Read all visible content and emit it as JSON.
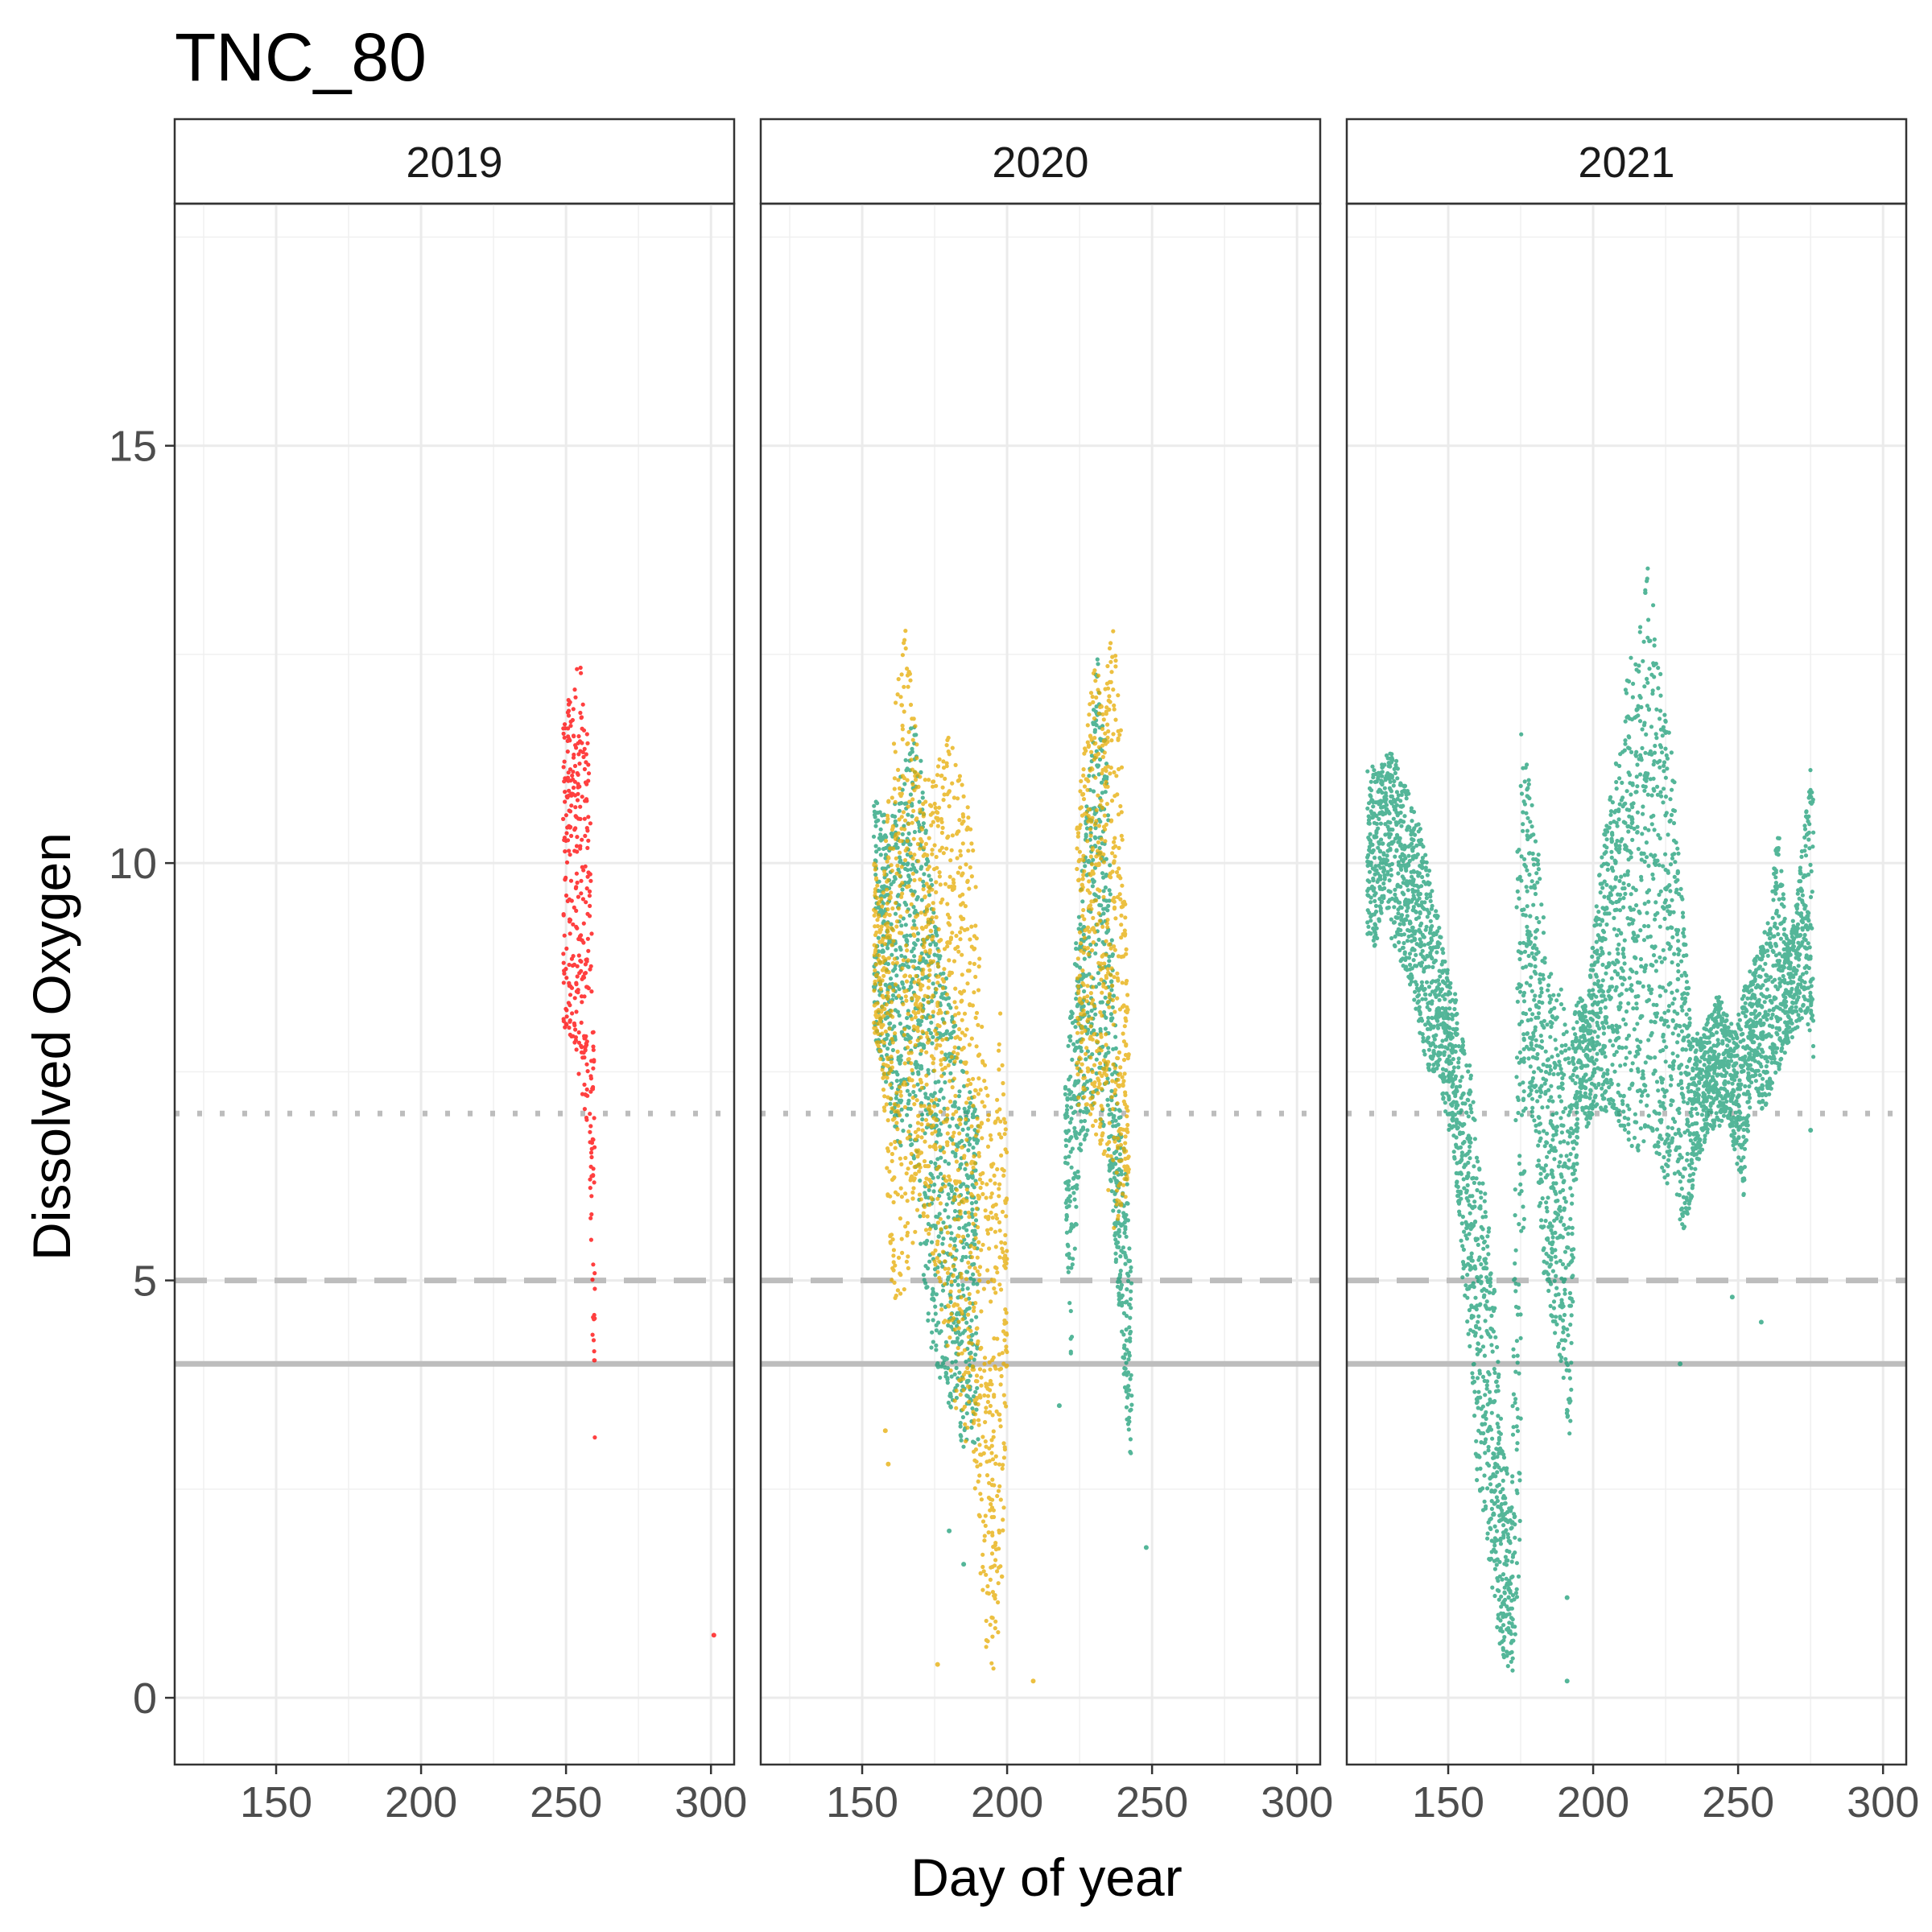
{
  "chart_data": {
    "type": "scatter",
    "title": "TNC_80",
    "xlabel": "Day of year",
    "ylabel": "Dissolved Oxygen",
    "xlim": [
      115,
      308
    ],
    "ylim": [
      -0.8,
      17.9
    ],
    "x_ticks": [
      150,
      200,
      250,
      300
    ],
    "y_ticks": [
      0,
      5,
      10,
      15
    ],
    "grid": true,
    "legend": "none",
    "colors": {
      "red": "#ff0000",
      "gold": "#e6ab02",
      "teal": "#1b9e77",
      "reference": "#bdbdbd"
    },
    "reference_lines": [
      {
        "y": 7,
        "style": "dotted"
      },
      {
        "y": 5,
        "style": "dashed"
      },
      {
        "y": 4,
        "style": "solid"
      }
    ],
    "facets": [
      {
        "label": "2019",
        "series": [
          {
            "color": "#ff0000",
            "bands": [
              [
                249,
                7.8,
                11.6
              ],
              [
                251,
                8.0,
                12.0
              ],
              [
                253,
                7.6,
                12.3
              ],
              [
                255,
                7.3,
                12.4
              ],
              [
                257,
                6.8,
                11.7
              ],
              [
                258,
                6.6,
                11.5
              ],
              [
                259,
                4.5,
                9.0
              ],
              [
                260,
                3.0,
                7.0
              ]
            ],
            "points": [
              [
                301,
                0.75
              ]
            ]
          }
        ]
      },
      {
        "label": "2020",
        "series": [
          {
            "color": "#1b9e77",
            "bands": [
              [
                154,
                8.0,
                10.8
              ],
              [
                157,
                7.5,
                10.6
              ],
              [
                160,
                7.0,
                10.5
              ],
              [
                163,
                6.5,
                11.0
              ],
              [
                166,
                6.8,
                11.5
              ],
              [
                169,
                6.0,
                12.0
              ],
              [
                172,
                4.5,
                10.5
              ],
              [
                175,
                4.0,
                9.5
              ],
              [
                180,
                3.5,
                8.5
              ],
              [
                185,
                3.0,
                7.5
              ],
              [
                190,
                3.0,
                7.0
              ],
              [
                220,
                6.0,
                7.5
              ],
              [
                222,
                4.0,
                8.5
              ],
              [
                225,
                6.5,
                9.5
              ],
              [
                228,
                6.8,
                11.0
              ],
              [
                231,
                7.0,
                12.5
              ],
              [
                234,
                6.8,
                11.5
              ],
              [
                238,
                5.0,
                7.5
              ],
              [
                241,
                3.5,
                6.5
              ],
              [
                243,
                2.2,
                5.0
              ]
            ],
            "points": [
              [
                180,
                2.0
              ],
              [
                185,
                1.6
              ],
              [
                218,
                3.5
              ],
              [
                248,
                1.8
              ]
            ]
          },
          {
            "color": "#e6ab02",
            "bands": [
              [
                154,
                8.0,
                10.2
              ],
              [
                157,
                7.5,
                9.5
              ],
              [
                160,
                5.0,
                11.5
              ],
              [
                163,
                4.5,
                12.5
              ],
              [
                166,
                5.0,
                13.0
              ],
              [
                170,
                6.0,
                11.0
              ],
              [
                175,
                5.0,
                11.0
              ],
              [
                180,
                4.0,
                11.8
              ],
              [
                184,
                3.0,
                11.0
              ],
              [
                188,
                3.0,
                10.5
              ],
              [
                192,
                0.5,
                8.0
              ],
              [
                195,
                0.3,
                6.5
              ],
              [
                198,
                0.8,
                8.5
              ],
              [
                200,
                4.0,
                6.5
              ],
              [
                224,
                7.0,
                10.5
              ],
              [
                227,
                7.0,
                11.5
              ],
              [
                230,
                6.8,
                12.5
              ],
              [
                233,
                6.5,
                12.0
              ],
              [
                236,
                5.5,
                13.0
              ],
              [
                239,
                5.8,
                12.0
              ],
              [
                242,
                6.0,
                8.0
              ]
            ],
            "points": [
              [
                158,
                3.2
              ],
              [
                159,
                2.8
              ],
              [
                176,
                0.4
              ],
              [
                209,
                0.2
              ]
            ]
          }
        ]
      },
      {
        "label": "2021",
        "series": [
          {
            "color": "#1b9e77",
            "bands": [
              [
                122,
                9.0,
                11.1
              ],
              [
                125,
                9.0,
                11.2
              ],
              [
                128,
                9.5,
                11.3
              ],
              [
                131,
                9.0,
                11.4
              ],
              [
                134,
                8.8,
                11.0
              ],
              [
                137,
                8.5,
                10.8
              ],
              [
                140,
                8.0,
                10.5
              ],
              [
                143,
                7.5,
                10.0
              ],
              [
                146,
                7.5,
                9.5
              ],
              [
                149,
                7.0,
                8.8
              ],
              [
                152,
                6.5,
                8.5
              ],
              [
                155,
                5.0,
                8.0
              ],
              [
                158,
                4.0,
                7.5
              ],
              [
                160,
                2.5,
                6.5
              ],
              [
                163,
                2.0,
                6.0
              ],
              [
                166,
                1.0,
                5.0
              ],
              [
                169,
                0.4,
                3.0
              ],
              [
                172,
                0.2,
                2.5
              ],
              [
                174,
                0.3,
                11.8
              ],
              [
                177,
                7.5,
                11.2
              ],
              [
                180,
                6.5,
                10.5
              ],
              [
                183,
                5.0,
                9.5
              ],
              [
                186,
                4.5,
                8.5
              ],
              [
                189,
                4.0,
                8.5
              ],
              [
                192,
                3.0,
                8.0
              ],
              [
                195,
                7.2,
                8.4
              ],
              [
                198,
                6.8,
                8.3
              ],
              [
                201,
                7.0,
                9.5
              ],
              [
                204,
                7.0,
                10.5
              ],
              [
                207,
                7.0,
                11.0
              ],
              [
                210,
                6.8,
                11.8
              ],
              [
                213,
                6.5,
                12.5
              ],
              [
                216,
                6.5,
                12.8
              ],
              [
                219,
                6.8,
                13.9
              ],
              [
                222,
                6.5,
                12.5
              ],
              [
                225,
                6.2,
                12.0
              ],
              [
                228,
                6.0,
                11.0
              ],
              [
                231,
                5.5,
                9.5
              ],
              [
                234,
                6.0,
                8.0
              ],
              [
                237,
                6.5,
                8.0
              ],
              [
                240,
                6.8,
                8.2
              ],
              [
                243,
                6.8,
                8.5
              ],
              [
                246,
                7.0,
                8.2
              ],
              [
                249,
                6.5,
                8.0
              ],
              [
                252,
                6.0,
                8.5
              ],
              [
                255,
                7.5,
                8.8
              ],
              [
                258,
                7.0,
                9.0
              ],
              [
                261,
                7.2,
                9.5
              ],
              [
                264,
                7.5,
                10.5
              ],
              [
                267,
                7.8,
                9.0
              ],
              [
                270,
                8.0,
                9.5
              ],
              [
                273,
                8.2,
                10.5
              ],
              [
                276,
                7.5,
                11.5
              ]
            ],
            "points": [
              [
                230,
                4.0
              ],
              [
                258,
                4.5
              ],
              [
                191,
                0.2
              ],
              [
                191,
                1.2
              ],
              [
                248,
                4.8
              ],
              [
                275,
                6.8
              ]
            ]
          }
        ]
      }
    ]
  }
}
